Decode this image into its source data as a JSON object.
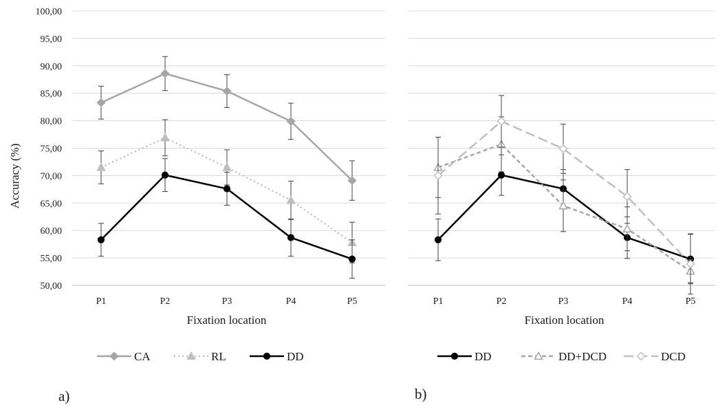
{
  "ylabel": "Accuracy  (%)",
  "chart_data": [
    {
      "type": "line",
      "panel_label": "a)",
      "xlabel": "Fixation  location",
      "categories": [
        "P1",
        "P2",
        "P3",
        "P4",
        "P5"
      ],
      "ylim": [
        50,
        100
      ],
      "yticks": [
        "50,00",
        "55,00",
        "60,00",
        "65,00",
        "70,00",
        "75,00",
        "80,00",
        "85,00",
        "90,00",
        "95,00",
        "100,00"
      ],
      "grid": true,
      "legend_position": "bottom",
      "series": [
        {
          "name": "CA",
          "values": [
            83.3,
            88.6,
            85.4,
            79.9,
            69.1
          ],
          "error": [
            3.0,
            3.1,
            3.0,
            3.3,
            3.6
          ],
          "color": "#a6a6a6",
          "style": "solid",
          "marker": "diamond"
        },
        {
          "name": "RL",
          "values": [
            71.5,
            76.9,
            71.5,
            65.5,
            57.8
          ],
          "error": [
            3.0,
            3.3,
            3.2,
            3.5,
            3.7
          ],
          "color": "#bfbfbf",
          "style": "dotted",
          "marker": "triangle"
        },
        {
          "name": "DD",
          "values": [
            58.3,
            70.1,
            67.6,
            58.7,
            54.8
          ],
          "error": [
            3.0,
            3.0,
            3.0,
            3.4,
            3.5
          ],
          "color": "#000000",
          "style": "solid",
          "marker": "circle"
        }
      ]
    },
    {
      "type": "line",
      "panel_label": "b)",
      "xlabel": "Fixation  location",
      "categories": [
        "P1",
        "P2",
        "P3",
        "P4",
        "P5"
      ],
      "ylim": [
        50,
        100
      ],
      "grid": true,
      "legend_position": "bottom",
      "series": [
        {
          "name": "DD",
          "values": [
            58.3,
            70.1,
            67.6,
            58.7,
            54.8
          ],
          "error": [
            3.8,
            3.7,
            3.5,
            3.8,
            4.5
          ],
          "color": "#000000",
          "style": "solid",
          "marker": "circle"
        },
        {
          "name": "DD+DCD",
          "values": [
            71.5,
            75.7,
            64.5,
            60.3,
            52.6
          ],
          "error": [
            5.5,
            5.0,
            4.7,
            4.0,
            2.1
          ],
          "color": "#a6a6a6",
          "style": "dashed",
          "marker": "triangle-open"
        },
        {
          "name": "DCD",
          "values": [
            70.0,
            79.9,
            74.9,
            66.2,
            53.9
          ],
          "error": [
            7.0,
            4.7,
            4.5,
            4.9,
            5.5
          ],
          "color": "#bfbfbf",
          "style": "longdash",
          "marker": "diamond-open"
        }
      ]
    }
  ]
}
